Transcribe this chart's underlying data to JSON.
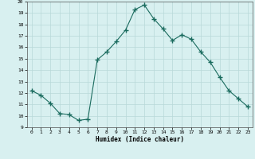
{
  "x": [
    0,
    1,
    2,
    3,
    4,
    5,
    6,
    7,
    8,
    9,
    10,
    11,
    12,
    13,
    14,
    15,
    16,
    17,
    18,
    19,
    20,
    21,
    22,
    23
  ],
  "y": [
    12.2,
    11.8,
    11.1,
    10.2,
    10.1,
    9.6,
    9.7,
    14.9,
    15.6,
    16.5,
    17.5,
    19.3,
    19.7,
    18.5,
    17.6,
    16.6,
    17.1,
    16.7,
    15.6,
    14.7,
    13.4,
    12.2,
    11.5,
    10.8
  ],
  "xlabel": "Humidex (Indice chaleur)",
  "ylim": [
    9,
    20
  ],
  "xlim": [
    -0.5,
    23.5
  ],
  "yticks": [
    9,
    10,
    11,
    12,
    13,
    14,
    15,
    16,
    17,
    18,
    19,
    20
  ],
  "xticks": [
    0,
    1,
    2,
    3,
    4,
    5,
    6,
    7,
    8,
    9,
    10,
    11,
    12,
    13,
    14,
    15,
    16,
    17,
    18,
    19,
    20,
    21,
    22,
    23
  ],
  "line_color": "#1a6b5e",
  "marker": "+",
  "bg_color": "#d8f0f0",
  "grid_color": "#b8d8d8"
}
